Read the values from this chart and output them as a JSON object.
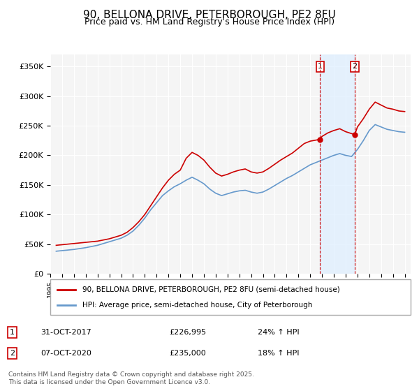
{
  "title": "90, BELLONA DRIVE, PETERBOROUGH, PE2 8FU",
  "subtitle": "Price paid vs. HM Land Registry's House Price Index (HPI)",
  "title_fontsize": 11,
  "subtitle_fontsize": 9,
  "ylabel_ticks": [
    "£0",
    "£50K",
    "£100K",
    "£150K",
    "£200K",
    "£250K",
    "£300K",
    "£350K"
  ],
  "ytick_vals": [
    0,
    50000,
    100000,
    150000,
    200000,
    250000,
    300000,
    350000
  ],
  "ylim": [
    0,
    370000
  ],
  "xlim_start": 1995,
  "xlim_end": 2025.5,
  "red_line_color": "#cc0000",
  "blue_line_color": "#6699cc",
  "background_color": "#ffffff",
  "plot_bg_color": "#f5f5f5",
  "grid_color": "#ffffff",
  "marker1_x": 2017.83,
  "marker1_y": 226995,
  "marker2_x": 2020.77,
  "marker2_y": 235000,
  "marker_vline_color": "#cc0000",
  "marker_bg_color": "#ddeeff",
  "legend_label_red": "90, BELLONA DRIVE, PETERBOROUGH, PE2 8FU (semi-detached house)",
  "legend_label_blue": "HPI: Average price, semi-detached house, City of Peterborough",
  "annotation1": "31-OCT-2017    £226,995    24% ↑ HPI",
  "annotation2": "07-OCT-2020    £235,000    18% ↑ HPI",
  "footnote": "Contains HM Land Registry data © Crown copyright and database right 2025.\nThis data is licensed under the Open Government Licence v3.0.",
  "red_data": {
    "years": [
      1995.5,
      1996.0,
      1996.5,
      1997.0,
      1997.5,
      1998.0,
      1998.5,
      1999.0,
      1999.5,
      2000.0,
      2000.5,
      2001.0,
      2001.5,
      2002.0,
      2002.5,
      2003.0,
      2003.5,
      2004.0,
      2004.5,
      2005.0,
      2005.5,
      2006.0,
      2006.5,
      2007.0,
      2007.5,
      2008.0,
      2008.5,
      2009.0,
      2009.5,
      2010.0,
      2010.5,
      2011.0,
      2011.5,
      2012.0,
      2012.5,
      2013.0,
      2013.5,
      2014.0,
      2014.5,
      2015.0,
      2015.5,
      2016.0,
      2016.5,
      2017.0,
      2017.83,
      2018.0,
      2018.5,
      2019.0,
      2019.5,
      2020.0,
      2020.77,
      2021.0,
      2021.5,
      2022.0,
      2022.5,
      2023.0,
      2023.5,
      2024.0,
      2024.5,
      2025.0
    ],
    "values": [
      48000,
      49000,
      50000,
      51000,
      52000,
      53000,
      54000,
      55000,
      57000,
      59000,
      62000,
      65000,
      70000,
      78000,
      88000,
      100000,
      115000,
      130000,
      145000,
      158000,
      168000,
      175000,
      195000,
      205000,
      200000,
      192000,
      180000,
      170000,
      165000,
      168000,
      172000,
      175000,
      177000,
      172000,
      170000,
      172000,
      178000,
      185000,
      192000,
      198000,
      204000,
      212000,
      220000,
      224000,
      226995,
      232000,
      238000,
      242000,
      245000,
      240000,
      235000,
      248000,
      262000,
      278000,
      290000,
      285000,
      280000,
      278000,
      275000,
      274000
    ]
  },
  "blue_data": {
    "years": [
      1995.5,
      1996.0,
      1996.5,
      1997.0,
      1997.5,
      1998.0,
      1998.5,
      1999.0,
      1999.5,
      2000.0,
      2000.5,
      2001.0,
      2001.5,
      2002.0,
      2002.5,
      2003.0,
      2003.5,
      2004.0,
      2004.5,
      2005.0,
      2005.5,
      2006.0,
      2006.5,
      2007.0,
      2007.5,
      2008.0,
      2008.5,
      2009.0,
      2009.5,
      2010.0,
      2010.5,
      2011.0,
      2011.5,
      2012.0,
      2012.5,
      2013.0,
      2013.5,
      2014.0,
      2014.5,
      2015.0,
      2015.5,
      2016.0,
      2016.5,
      2017.0,
      2017.5,
      2018.0,
      2018.5,
      2019.0,
      2019.5,
      2020.0,
      2020.5,
      2021.0,
      2021.5,
      2022.0,
      2022.5,
      2023.0,
      2023.5,
      2024.0,
      2024.5,
      2025.0
    ],
    "values": [
      38000,
      39000,
      40000,
      41000,
      42500,
      44000,
      46000,
      48000,
      51000,
      54000,
      57000,
      60000,
      65000,
      72000,
      82000,
      94000,
      108000,
      120000,
      132000,
      140000,
      147000,
      152000,
      158000,
      163000,
      158000,
      152000,
      143000,
      136000,
      132000,
      135000,
      138000,
      140000,
      141000,
      138000,
      136000,
      138000,
      143000,
      149000,
      155000,
      161000,
      166000,
      172000,
      178000,
      184000,
      188000,
      192000,
      196000,
      200000,
      203000,
      200000,
      198000,
      210000,
      225000,
      242000,
      252000,
      248000,
      244000,
      242000,
      240000,
      239000
    ]
  }
}
